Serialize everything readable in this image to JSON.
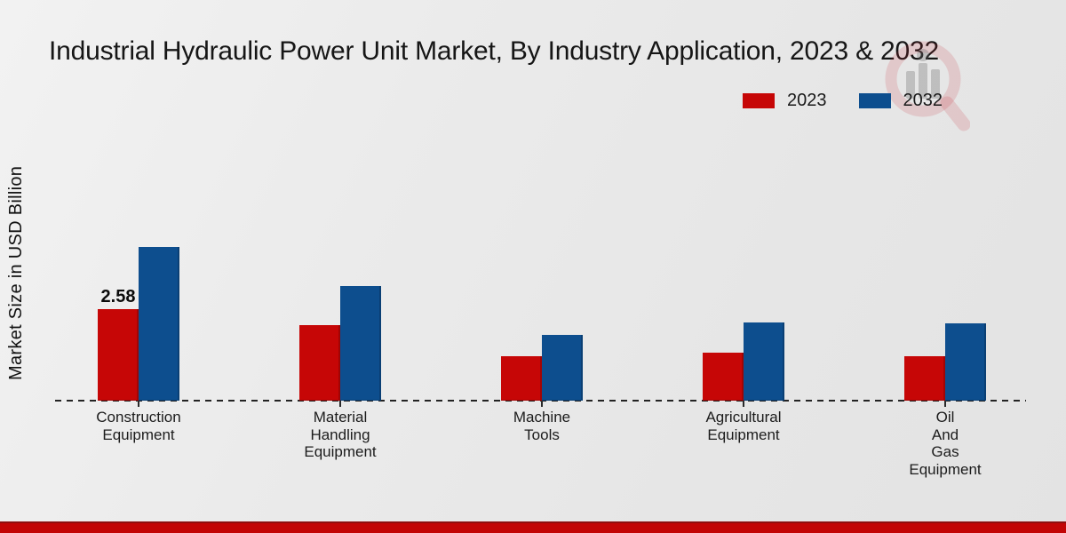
{
  "title": "Industrial Hydraulic Power Unit Market, By Industry Application, 2023 & 2032",
  "y_axis_label": "Market Size in USD Billion",
  "colors": {
    "series_2023_red": "#c60606",
    "series_2032_blue": "#0d4e8e",
    "footer_band_red": "#c20505",
    "background_gray": "#e9e9e9"
  },
  "watermark_icon": "market-research-magnifier-logo",
  "chart_data": {
    "type": "bar",
    "title": "Industrial Hydraulic Power Unit Market, By Industry Application, 2023 & 2032",
    "ylabel": "Market Size in USD Billion",
    "xlabel": "",
    "categories": [
      "Construction\nEquipment",
      "Material\nHandling\nEquipment",
      "Machine\nTools",
      "Agricultural\nEquipment",
      "Oil\nAnd\nGas\nEquipment"
    ],
    "series": [
      {
        "name": "2023",
        "color": "#c60606",
        "values": [
          2.58,
          2.13,
          1.25,
          1.35,
          1.25
        ]
      },
      {
        "name": "2032",
        "color": "#0d4e8e",
        "values": [
          4.33,
          3.23,
          1.85,
          2.2,
          2.18
        ]
      }
    ],
    "data_labels": [
      {
        "series_index": 0,
        "category_index": 0,
        "text": "2.58"
      }
    ],
    "ylim": [
      0,
      4.6
    ],
    "grid": "off",
    "axis_ticks_visible": false,
    "baseline_style": "dashed",
    "legend_position": "top-right"
  }
}
